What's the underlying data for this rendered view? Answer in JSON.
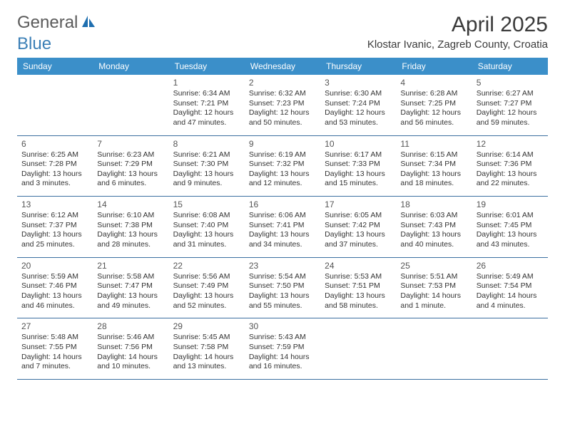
{
  "logo": {
    "part1": "General",
    "part2": "Blue"
  },
  "title": "April 2025",
  "location": "Klostar Ivanic, Zagreb County, Croatia",
  "colors": {
    "header_bg": "#3b8fc9",
    "header_text": "#ffffff",
    "row_border": "#3b6fa0",
    "text": "#333333",
    "logo_gray": "#5a5a5a",
    "logo_blue": "#3b7fb6"
  },
  "dayNames": [
    "Sunday",
    "Monday",
    "Tuesday",
    "Wednesday",
    "Thursday",
    "Friday",
    "Saturday"
  ],
  "weeks": [
    [
      null,
      null,
      {
        "d": "1",
        "sr": "6:34 AM",
        "ss": "7:21 PM",
        "dl": "12 hours and 47 minutes."
      },
      {
        "d": "2",
        "sr": "6:32 AM",
        "ss": "7:23 PM",
        "dl": "12 hours and 50 minutes."
      },
      {
        "d": "3",
        "sr": "6:30 AM",
        "ss": "7:24 PM",
        "dl": "12 hours and 53 minutes."
      },
      {
        "d": "4",
        "sr": "6:28 AM",
        "ss": "7:25 PM",
        "dl": "12 hours and 56 minutes."
      },
      {
        "d": "5",
        "sr": "6:27 AM",
        "ss": "7:27 PM",
        "dl": "12 hours and 59 minutes."
      }
    ],
    [
      {
        "d": "6",
        "sr": "6:25 AM",
        "ss": "7:28 PM",
        "dl": "13 hours and 3 minutes."
      },
      {
        "d": "7",
        "sr": "6:23 AM",
        "ss": "7:29 PM",
        "dl": "13 hours and 6 minutes."
      },
      {
        "d": "8",
        "sr": "6:21 AM",
        "ss": "7:30 PM",
        "dl": "13 hours and 9 minutes."
      },
      {
        "d": "9",
        "sr": "6:19 AM",
        "ss": "7:32 PM",
        "dl": "13 hours and 12 minutes."
      },
      {
        "d": "10",
        "sr": "6:17 AM",
        "ss": "7:33 PM",
        "dl": "13 hours and 15 minutes."
      },
      {
        "d": "11",
        "sr": "6:15 AM",
        "ss": "7:34 PM",
        "dl": "13 hours and 18 minutes."
      },
      {
        "d": "12",
        "sr": "6:14 AM",
        "ss": "7:36 PM",
        "dl": "13 hours and 22 minutes."
      }
    ],
    [
      {
        "d": "13",
        "sr": "6:12 AM",
        "ss": "7:37 PM",
        "dl": "13 hours and 25 minutes."
      },
      {
        "d": "14",
        "sr": "6:10 AM",
        "ss": "7:38 PM",
        "dl": "13 hours and 28 minutes."
      },
      {
        "d": "15",
        "sr": "6:08 AM",
        "ss": "7:40 PM",
        "dl": "13 hours and 31 minutes."
      },
      {
        "d": "16",
        "sr": "6:06 AM",
        "ss": "7:41 PM",
        "dl": "13 hours and 34 minutes."
      },
      {
        "d": "17",
        "sr": "6:05 AM",
        "ss": "7:42 PM",
        "dl": "13 hours and 37 minutes."
      },
      {
        "d": "18",
        "sr": "6:03 AM",
        "ss": "7:43 PM",
        "dl": "13 hours and 40 minutes."
      },
      {
        "d": "19",
        "sr": "6:01 AM",
        "ss": "7:45 PM",
        "dl": "13 hours and 43 minutes."
      }
    ],
    [
      {
        "d": "20",
        "sr": "5:59 AM",
        "ss": "7:46 PM",
        "dl": "13 hours and 46 minutes."
      },
      {
        "d": "21",
        "sr": "5:58 AM",
        "ss": "7:47 PM",
        "dl": "13 hours and 49 minutes."
      },
      {
        "d": "22",
        "sr": "5:56 AM",
        "ss": "7:49 PM",
        "dl": "13 hours and 52 minutes."
      },
      {
        "d": "23",
        "sr": "5:54 AM",
        "ss": "7:50 PM",
        "dl": "13 hours and 55 minutes."
      },
      {
        "d": "24",
        "sr": "5:53 AM",
        "ss": "7:51 PM",
        "dl": "13 hours and 58 minutes."
      },
      {
        "d": "25",
        "sr": "5:51 AM",
        "ss": "7:53 PM",
        "dl": "14 hours and 1 minute."
      },
      {
        "d": "26",
        "sr": "5:49 AM",
        "ss": "7:54 PM",
        "dl": "14 hours and 4 minutes."
      }
    ],
    [
      {
        "d": "27",
        "sr": "5:48 AM",
        "ss": "7:55 PM",
        "dl": "14 hours and 7 minutes."
      },
      {
        "d": "28",
        "sr": "5:46 AM",
        "ss": "7:56 PM",
        "dl": "14 hours and 10 minutes."
      },
      {
        "d": "29",
        "sr": "5:45 AM",
        "ss": "7:58 PM",
        "dl": "14 hours and 13 minutes."
      },
      {
        "d": "30",
        "sr": "5:43 AM",
        "ss": "7:59 PM",
        "dl": "14 hours and 16 minutes."
      },
      null,
      null,
      null
    ]
  ],
  "labels": {
    "sunrise": "Sunrise: ",
    "sunset": "Sunset: ",
    "daylight": "Daylight: "
  }
}
